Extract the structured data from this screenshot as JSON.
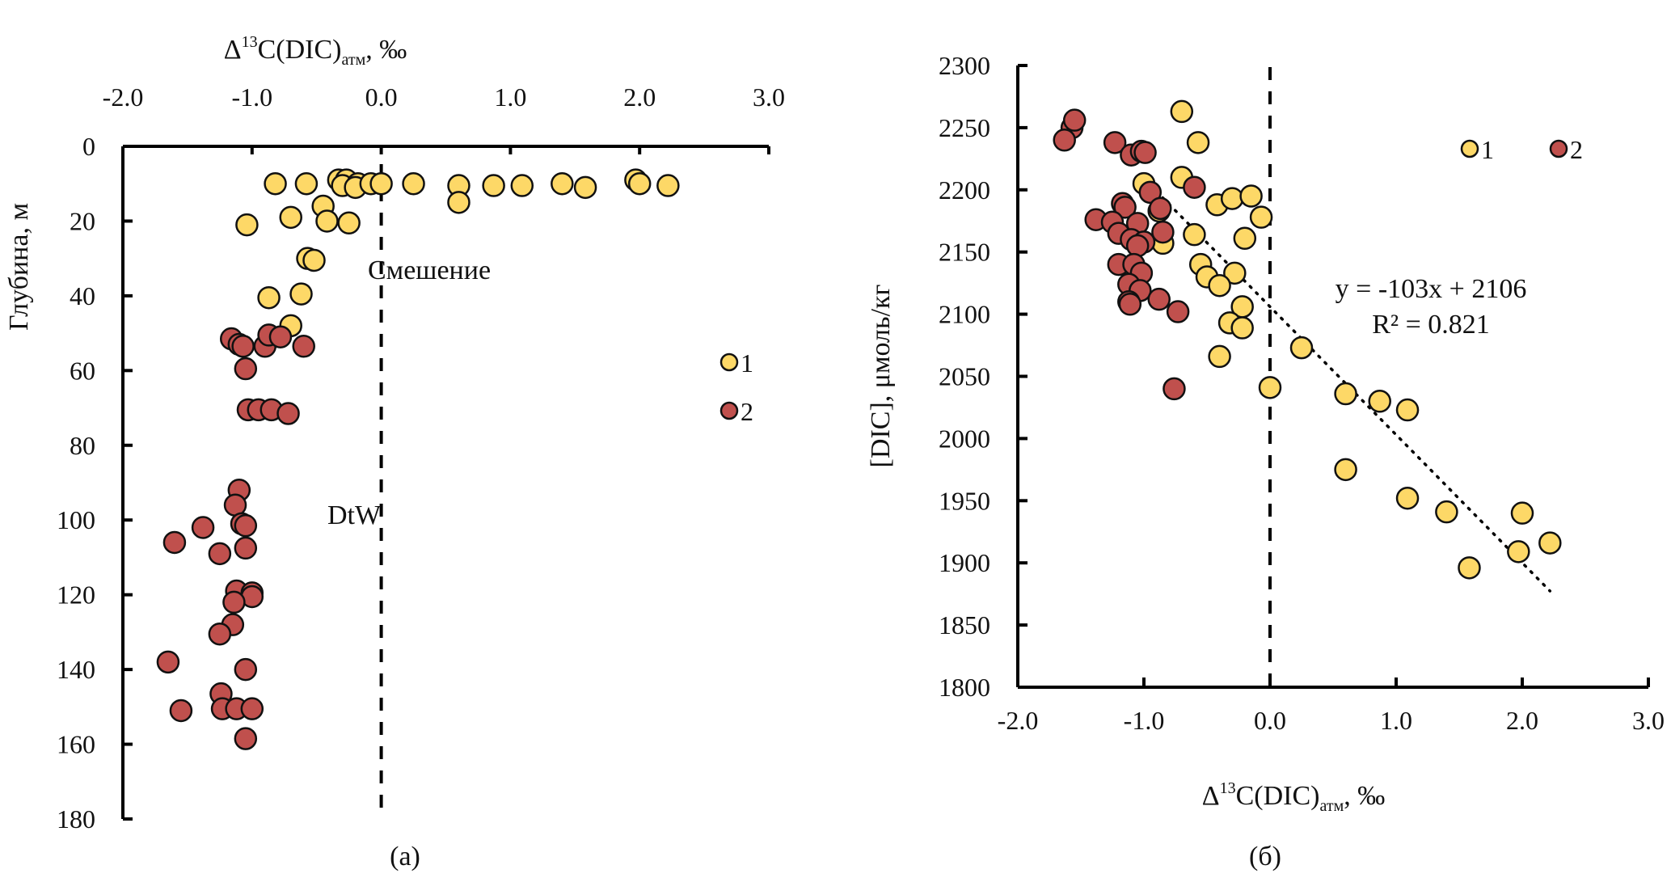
{
  "chart_data": [
    {
      "type": "scatter",
      "panel_label": "(a)",
      "title": "",
      "xlabel": {
        "main": "Δ",
        "sup": "13",
        "mid": "C(DIC)",
        "sub": "атм",
        "tail": ", ‰"
      },
      "ylabel": "Глубина, м",
      "xaxis_position": "top",
      "yaxis_inverted": true,
      "xlim": [
        -2.0,
        3.0
      ],
      "ylim": [
        0,
        180
      ],
      "xticks": [
        "-2.0",
        "-1.0",
        "0.0",
        "1.0",
        "2.0",
        "3.0"
      ],
      "xtick_values": [
        -2,
        -1,
        0,
        1,
        2,
        3
      ],
      "yticks": [
        "0",
        "20",
        "40",
        "60",
        "80",
        "100",
        "120",
        "140",
        "160",
        "180"
      ],
      "ytick_values": [
        0,
        20,
        40,
        60,
        80,
        100,
        120,
        140,
        160,
        180
      ],
      "grid": false,
      "legend": {
        "position": "right",
        "entries": [
          "1",
          "2"
        ]
      },
      "reference_line": {
        "x": 0.0,
        "style": "dashed"
      },
      "annotations": [
        "Смешение",
        "DtW"
      ],
      "series": [
        {
          "name": "1",
          "color": "#FDD867",
          "points": [
            {
              "x": -0.82,
              "y": 10
            },
            {
              "x": -0.58,
              "y": 10
            },
            {
              "x": -0.33,
              "y": 9
            },
            {
              "x": -0.27,
              "y": 9
            },
            {
              "x": -0.3,
              "y": 10.5
            },
            {
              "x": -0.18,
              "y": 10
            },
            {
              "x": -0.2,
              "y": 11
            },
            {
              "x": -0.08,
              "y": 10
            },
            {
              "x": 0.0,
              "y": 10
            },
            {
              "x": 0.25,
              "y": 10
            },
            {
              "x": 0.6,
              "y": 10.5
            },
            {
              "x": 0.6,
              "y": 15
            },
            {
              "x": 0.87,
              "y": 10.5
            },
            {
              "x": 1.09,
              "y": 10.5
            },
            {
              "x": 1.4,
              "y": 10
            },
            {
              "x": 1.58,
              "y": 11
            },
            {
              "x": 1.97,
              "y": 9
            },
            {
              "x": 2.0,
              "y": 10
            },
            {
              "x": 2.22,
              "y": 10.5
            },
            {
              "x": -1.04,
              "y": 21
            },
            {
              "x": -0.7,
              "y": 19
            },
            {
              "x": -0.45,
              "y": 16
            },
            {
              "x": -0.42,
              "y": 20
            },
            {
              "x": -0.25,
              "y": 20.5
            },
            {
              "x": -0.57,
              "y": 30
            },
            {
              "x": -0.52,
              "y": 30.5
            },
            {
              "x": -0.87,
              "y": 40.5
            },
            {
              "x": -0.62,
              "y": 39.5
            },
            {
              "x": -0.7,
              "y": 48
            }
          ]
        },
        {
          "name": "2",
          "color": "#C0504D",
          "points": [
            {
              "x": -1.16,
              "y": 51.5
            },
            {
              "x": -1.1,
              "y": 53
            },
            {
              "x": -1.07,
              "y": 53.5
            },
            {
              "x": -0.9,
              "y": 53.5
            },
            {
              "x": -0.87,
              "y": 50.5
            },
            {
              "x": -0.78,
              "y": 51
            },
            {
              "x": -0.6,
              "y": 53.5
            },
            {
              "x": -1.05,
              "y": 59.5
            },
            {
              "x": -1.03,
              "y": 70.5
            },
            {
              "x": -0.95,
              "y": 70.5
            },
            {
              "x": -0.85,
              "y": 70.5
            },
            {
              "x": -0.72,
              "y": 71.5
            },
            {
              "x": -1.1,
              "y": 92
            },
            {
              "x": -1.13,
              "y": 96
            },
            {
              "x": -1.08,
              "y": 101
            },
            {
              "x": -1.05,
              "y": 101.5
            },
            {
              "x": -1.38,
              "y": 102
            },
            {
              "x": -1.6,
              "y": 106
            },
            {
              "x": -1.25,
              "y": 109
            },
            {
              "x": -1.05,
              "y": 107.5
            },
            {
              "x": -1.12,
              "y": 119
            },
            {
              "x": -1.0,
              "y": 119.5
            },
            {
              "x": -1.0,
              "y": 120.5
            },
            {
              "x": -1.14,
              "y": 122
            },
            {
              "x": -1.15,
              "y": 128
            },
            {
              "x": -1.25,
              "y": 130.5
            },
            {
              "x": -1.65,
              "y": 138
            },
            {
              "x": -1.05,
              "y": 140
            },
            {
              "x": -1.24,
              "y": 146.5
            },
            {
              "x": -1.23,
              "y": 150.5
            },
            {
              "x": -1.12,
              "y": 150.5
            },
            {
              "x": -1.0,
              "y": 150.5
            },
            {
              "x": -1.55,
              "y": 151
            },
            {
              "x": -1.05,
              "y": 158.5
            }
          ]
        }
      ]
    },
    {
      "type": "scatter",
      "panel_label": "(б)",
      "title": "",
      "xlabel": {
        "main": "Δ",
        "sup": "13",
        "mid": "C(DIC)",
        "sub": "атм",
        "tail": ", ‰"
      },
      "ylabel": "[DIC], μмоль/кг",
      "xlim": [
        -2.0,
        3.0
      ],
      "ylim": [
        1800,
        2300
      ],
      "xticks": [
        "-2.0",
        "-1.0",
        "0.0",
        "1.0",
        "2.0",
        "3.0"
      ],
      "xtick_values": [
        -2,
        -1,
        0,
        1,
        2,
        3
      ],
      "yticks": [
        "1800",
        "1850",
        "1900",
        "1950",
        "2000",
        "2050",
        "2100",
        "2150",
        "2200",
        "2250",
        "2300"
      ],
      "ytick_values": [
        1800,
        1850,
        1900,
        1950,
        2000,
        2050,
        2100,
        2150,
        2200,
        2250,
        2300
      ],
      "grid": false,
      "legend": {
        "position": "top-right",
        "entries": [
          "1",
          "2"
        ]
      },
      "reference_line": {
        "x": 0.0,
        "style": "dashed"
      },
      "trendline": {
        "equation": "y = -103x + 2106",
        "r2_label": "R² = 0.821",
        "slope": -103,
        "intercept": 2106,
        "x_range": [
          -0.95,
          2.22
        ],
        "style": "dotted"
      },
      "series": [
        {
          "name": "1",
          "color": "#FDD867",
          "points": [
            {
              "x": -0.7,
              "y": 2263
            },
            {
              "x": -0.57,
              "y": 2238
            },
            {
              "x": -0.7,
              "y": 2210
            },
            {
              "x": -1.0,
              "y": 2205
            },
            {
              "x": -0.42,
              "y": 2188
            },
            {
              "x": -0.3,
              "y": 2193
            },
            {
              "x": -0.15,
              "y": 2195
            },
            {
              "x": -0.07,
              "y": 2178
            },
            {
              "x": -0.88,
              "y": 2183
            },
            {
              "x": -0.6,
              "y": 2164
            },
            {
              "x": -0.2,
              "y": 2161
            },
            {
              "x": -0.85,
              "y": 2157
            },
            {
              "x": -0.55,
              "y": 2140
            },
            {
              "x": -0.5,
              "y": 2130
            },
            {
              "x": -0.28,
              "y": 2133
            },
            {
              "x": -0.4,
              "y": 2123
            },
            {
              "x": -0.22,
              "y": 2106
            },
            {
              "x": -0.32,
              "y": 2093
            },
            {
              "x": -0.22,
              "y": 2089
            },
            {
              "x": -0.4,
              "y": 2066
            },
            {
              "x": 0.25,
              "y": 2073
            },
            {
              "x": 0.0,
              "y": 2041
            },
            {
              "x": 0.6,
              "y": 2036
            },
            {
              "x": 0.87,
              "y": 2030
            },
            {
              "x": 1.09,
              "y": 2023
            },
            {
              "x": 0.6,
              "y": 1975
            },
            {
              "x": 1.09,
              "y": 1952
            },
            {
              "x": 1.4,
              "y": 1941
            },
            {
              "x": 2.0,
              "y": 1940
            },
            {
              "x": 1.97,
              "y": 1909
            },
            {
              "x": 2.22,
              "y": 1916
            },
            {
              "x": 1.58,
              "y": 1896
            }
          ]
        },
        {
          "name": "2",
          "color": "#C0504D",
          "points": [
            {
              "x": -1.57,
              "y": 2250
            },
            {
              "x": -1.55,
              "y": 2256
            },
            {
              "x": -1.63,
              "y": 2240
            },
            {
              "x": -1.23,
              "y": 2238
            },
            {
              "x": -1.1,
              "y": 2228
            },
            {
              "x": -1.02,
              "y": 2231
            },
            {
              "x": -0.99,
              "y": 2230
            },
            {
              "x": -0.6,
              "y": 2202
            },
            {
              "x": -0.95,
              "y": 2198
            },
            {
              "x": -0.87,
              "y": 2185
            },
            {
              "x": -1.17,
              "y": 2189
            },
            {
              "x": -1.15,
              "y": 2186
            },
            {
              "x": -1.38,
              "y": 2176
            },
            {
              "x": -1.25,
              "y": 2174
            },
            {
              "x": -1.05,
              "y": 2173
            },
            {
              "x": -1.2,
              "y": 2165
            },
            {
              "x": -1.1,
              "y": 2160
            },
            {
              "x": -1.0,
              "y": 2158
            },
            {
              "x": -0.85,
              "y": 2166
            },
            {
              "x": -1.05,
              "y": 2155
            },
            {
              "x": -1.2,
              "y": 2140
            },
            {
              "x": -1.08,
              "y": 2140
            },
            {
              "x": -1.02,
              "y": 2133
            },
            {
              "x": -1.12,
              "y": 2124
            },
            {
              "x": -1.03,
              "y": 2119
            },
            {
              "x": -1.12,
              "y": 2110
            },
            {
              "x": -1.11,
              "y": 2108
            },
            {
              "x": -0.88,
              "y": 2112
            },
            {
              "x": -0.73,
              "y": 2102
            },
            {
              "x": -0.76,
              "y": 2040
            }
          ]
        }
      ]
    }
  ]
}
